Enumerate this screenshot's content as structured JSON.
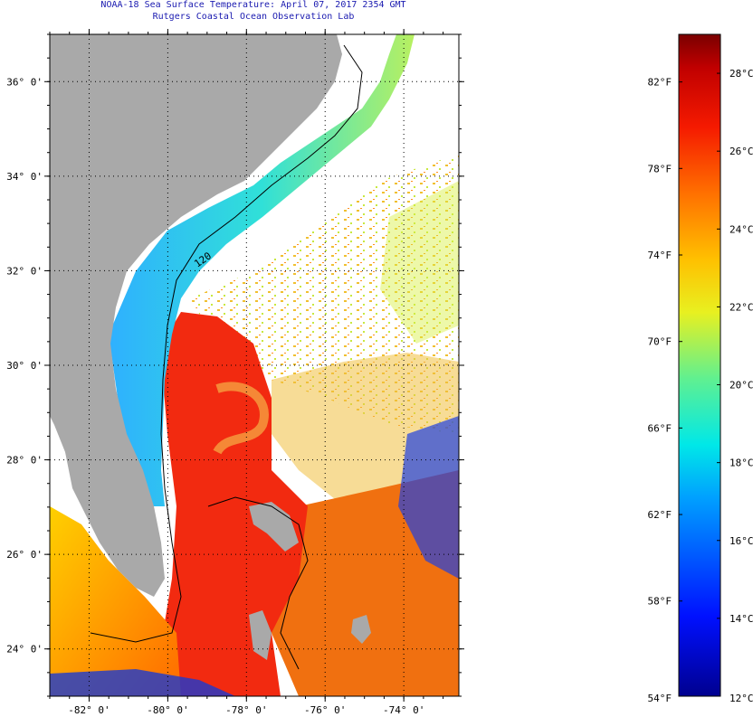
{
  "title": {
    "line1": "NOAA-18 Sea Surface Temperature:  April 07, 2017 2354 GMT",
    "line2": "Rutgers Coastal Ocean Observation Lab"
  },
  "map": {
    "lon_range": [
      -83.0,
      -72.6
    ],
    "lat_range": [
      23.0,
      37.0
    ],
    "lat_ticks": [
      {
        "value": 36,
        "label": "36° 0'"
      },
      {
        "value": 34,
        "label": "34° 0'"
      },
      {
        "value": 32,
        "label": "32° 0'"
      },
      {
        "value": 30,
        "label": "30° 0'"
      },
      {
        "value": 28,
        "label": "28° 0'"
      },
      {
        "value": 26,
        "label": "26° 0'"
      },
      {
        "value": 24,
        "label": "24° 0'"
      }
    ],
    "lon_ticks": [
      {
        "value": -82,
        "label": "-82° 0'"
      },
      {
        "value": -80,
        "label": "-80° 0'"
      },
      {
        "value": -78,
        "label": "-78° 0'"
      },
      {
        "value": -76,
        "label": "-76° 0'"
      },
      {
        "value": -74,
        "label": "-74° 0'"
      }
    ],
    "contour_label": "120",
    "colors": {
      "land": "#a9a9a9",
      "cloud": "#ffffff",
      "gulf_stream": "#f02a10",
      "shelf_cool": "#2ad0e0",
      "shelf_mid": "#a8f070"
    }
  },
  "colorbar": {
    "range_c": [
      12,
      29
    ],
    "celsius_labels": [
      "28°C",
      "26°C",
      "24°C",
      "22°C",
      "20°C",
      "18°C",
      "16°C",
      "14°C",
      "12°C"
    ],
    "fahrenheit_labels": [
      "82°F",
      "78°F",
      "74°F",
      "70°F",
      "66°F",
      "62°F",
      "58°F",
      "54°F"
    ],
    "celsius_values": [
      28,
      26,
      24,
      22,
      20,
      18,
      16,
      14,
      12
    ],
    "fahrenheit_values": [
      82,
      78,
      74,
      70,
      66,
      62,
      58,
      54
    ]
  }
}
